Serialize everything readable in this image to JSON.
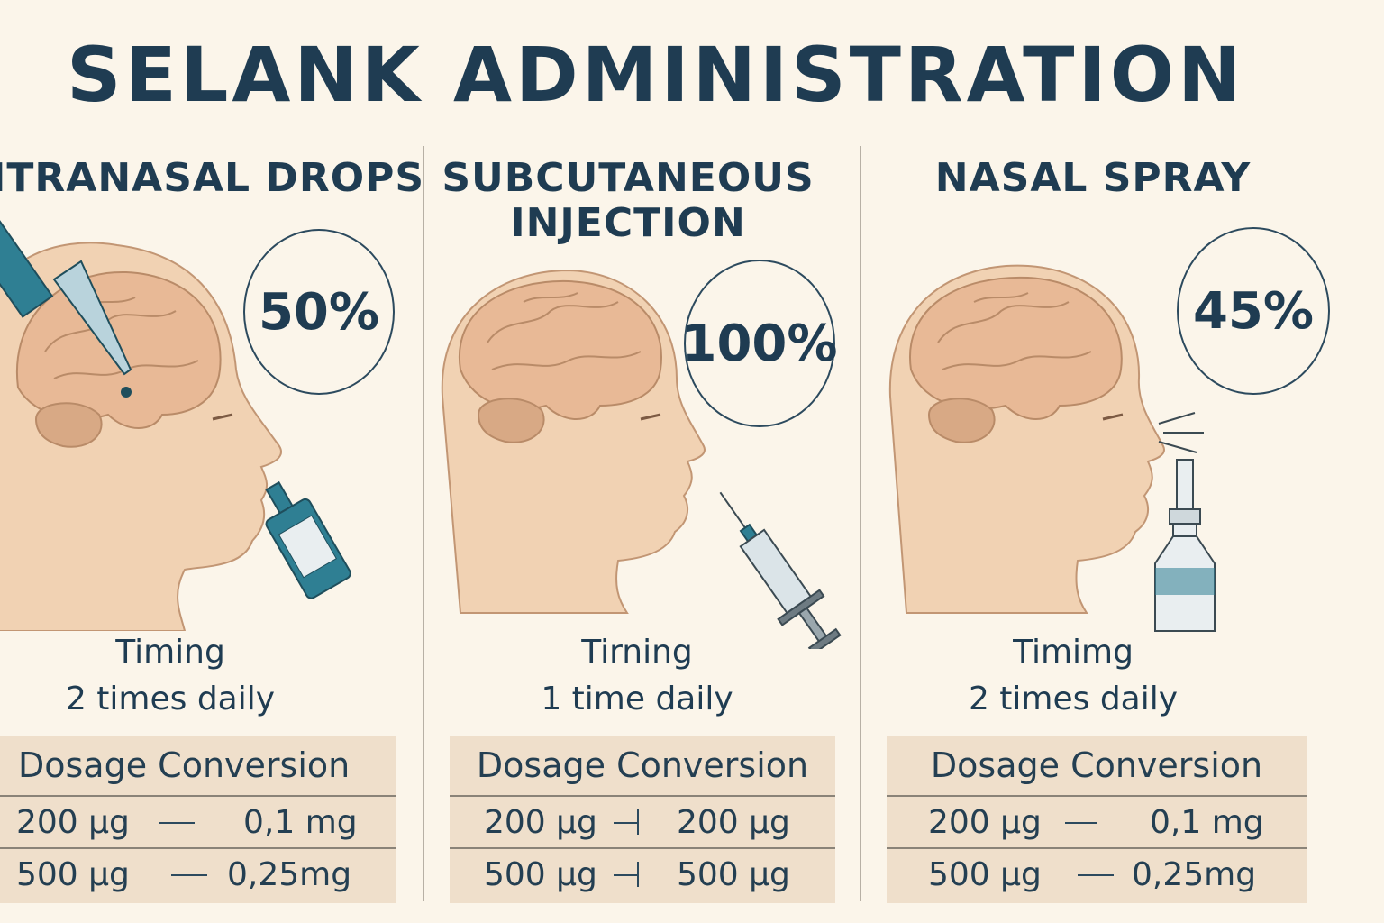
{
  "title": "SELANK ADMINISTRATION",
  "panels": [
    {
      "heading": "ITRANASAL DROPS",
      "percent": "50%",
      "timing_label": "Timing",
      "timing_value": "2 times daily",
      "table_header": "Dosage Conversion",
      "rows": [
        {
          "left": "200 µg",
          "right": "0,1 mg"
        },
        {
          "left": "500 µg",
          "right": "0,25mg"
        }
      ],
      "device": "dropper-icon"
    },
    {
      "heading_line1": "SUBCUTANEOUS",
      "heading_line2": "INJECTION",
      "percent": "100%",
      "timing_label": "Tirning",
      "timing_value": "1 time daily",
      "table_header": "Dosage Conversion",
      "rows": [
        {
          "left": "200 µg",
          "right": "200 µg"
        },
        {
          "left": "500 µg",
          "right": "500 µg"
        }
      ],
      "device": "syringe-icon"
    },
    {
      "heading": "NASAL SPRAY",
      "percent": "45%",
      "timing_label": "Timimg",
      "timing_value": "2 times daily",
      "table_header": "Dosage Conversion",
      "rows": [
        {
          "left": "200 µg",
          "right": "0,1 mg"
        },
        {
          "left": "500 µg",
          "right": "0,25mg"
        }
      ],
      "device": "nasal-spray-icon"
    }
  ],
  "colors": {
    "background": "#fbf5ea",
    "text": "#1f3c52",
    "skin": "#f1d2b3",
    "brain": "#e8b996",
    "accent_teal": "#2f7f93",
    "table_bg": "#efdfcb"
  }
}
